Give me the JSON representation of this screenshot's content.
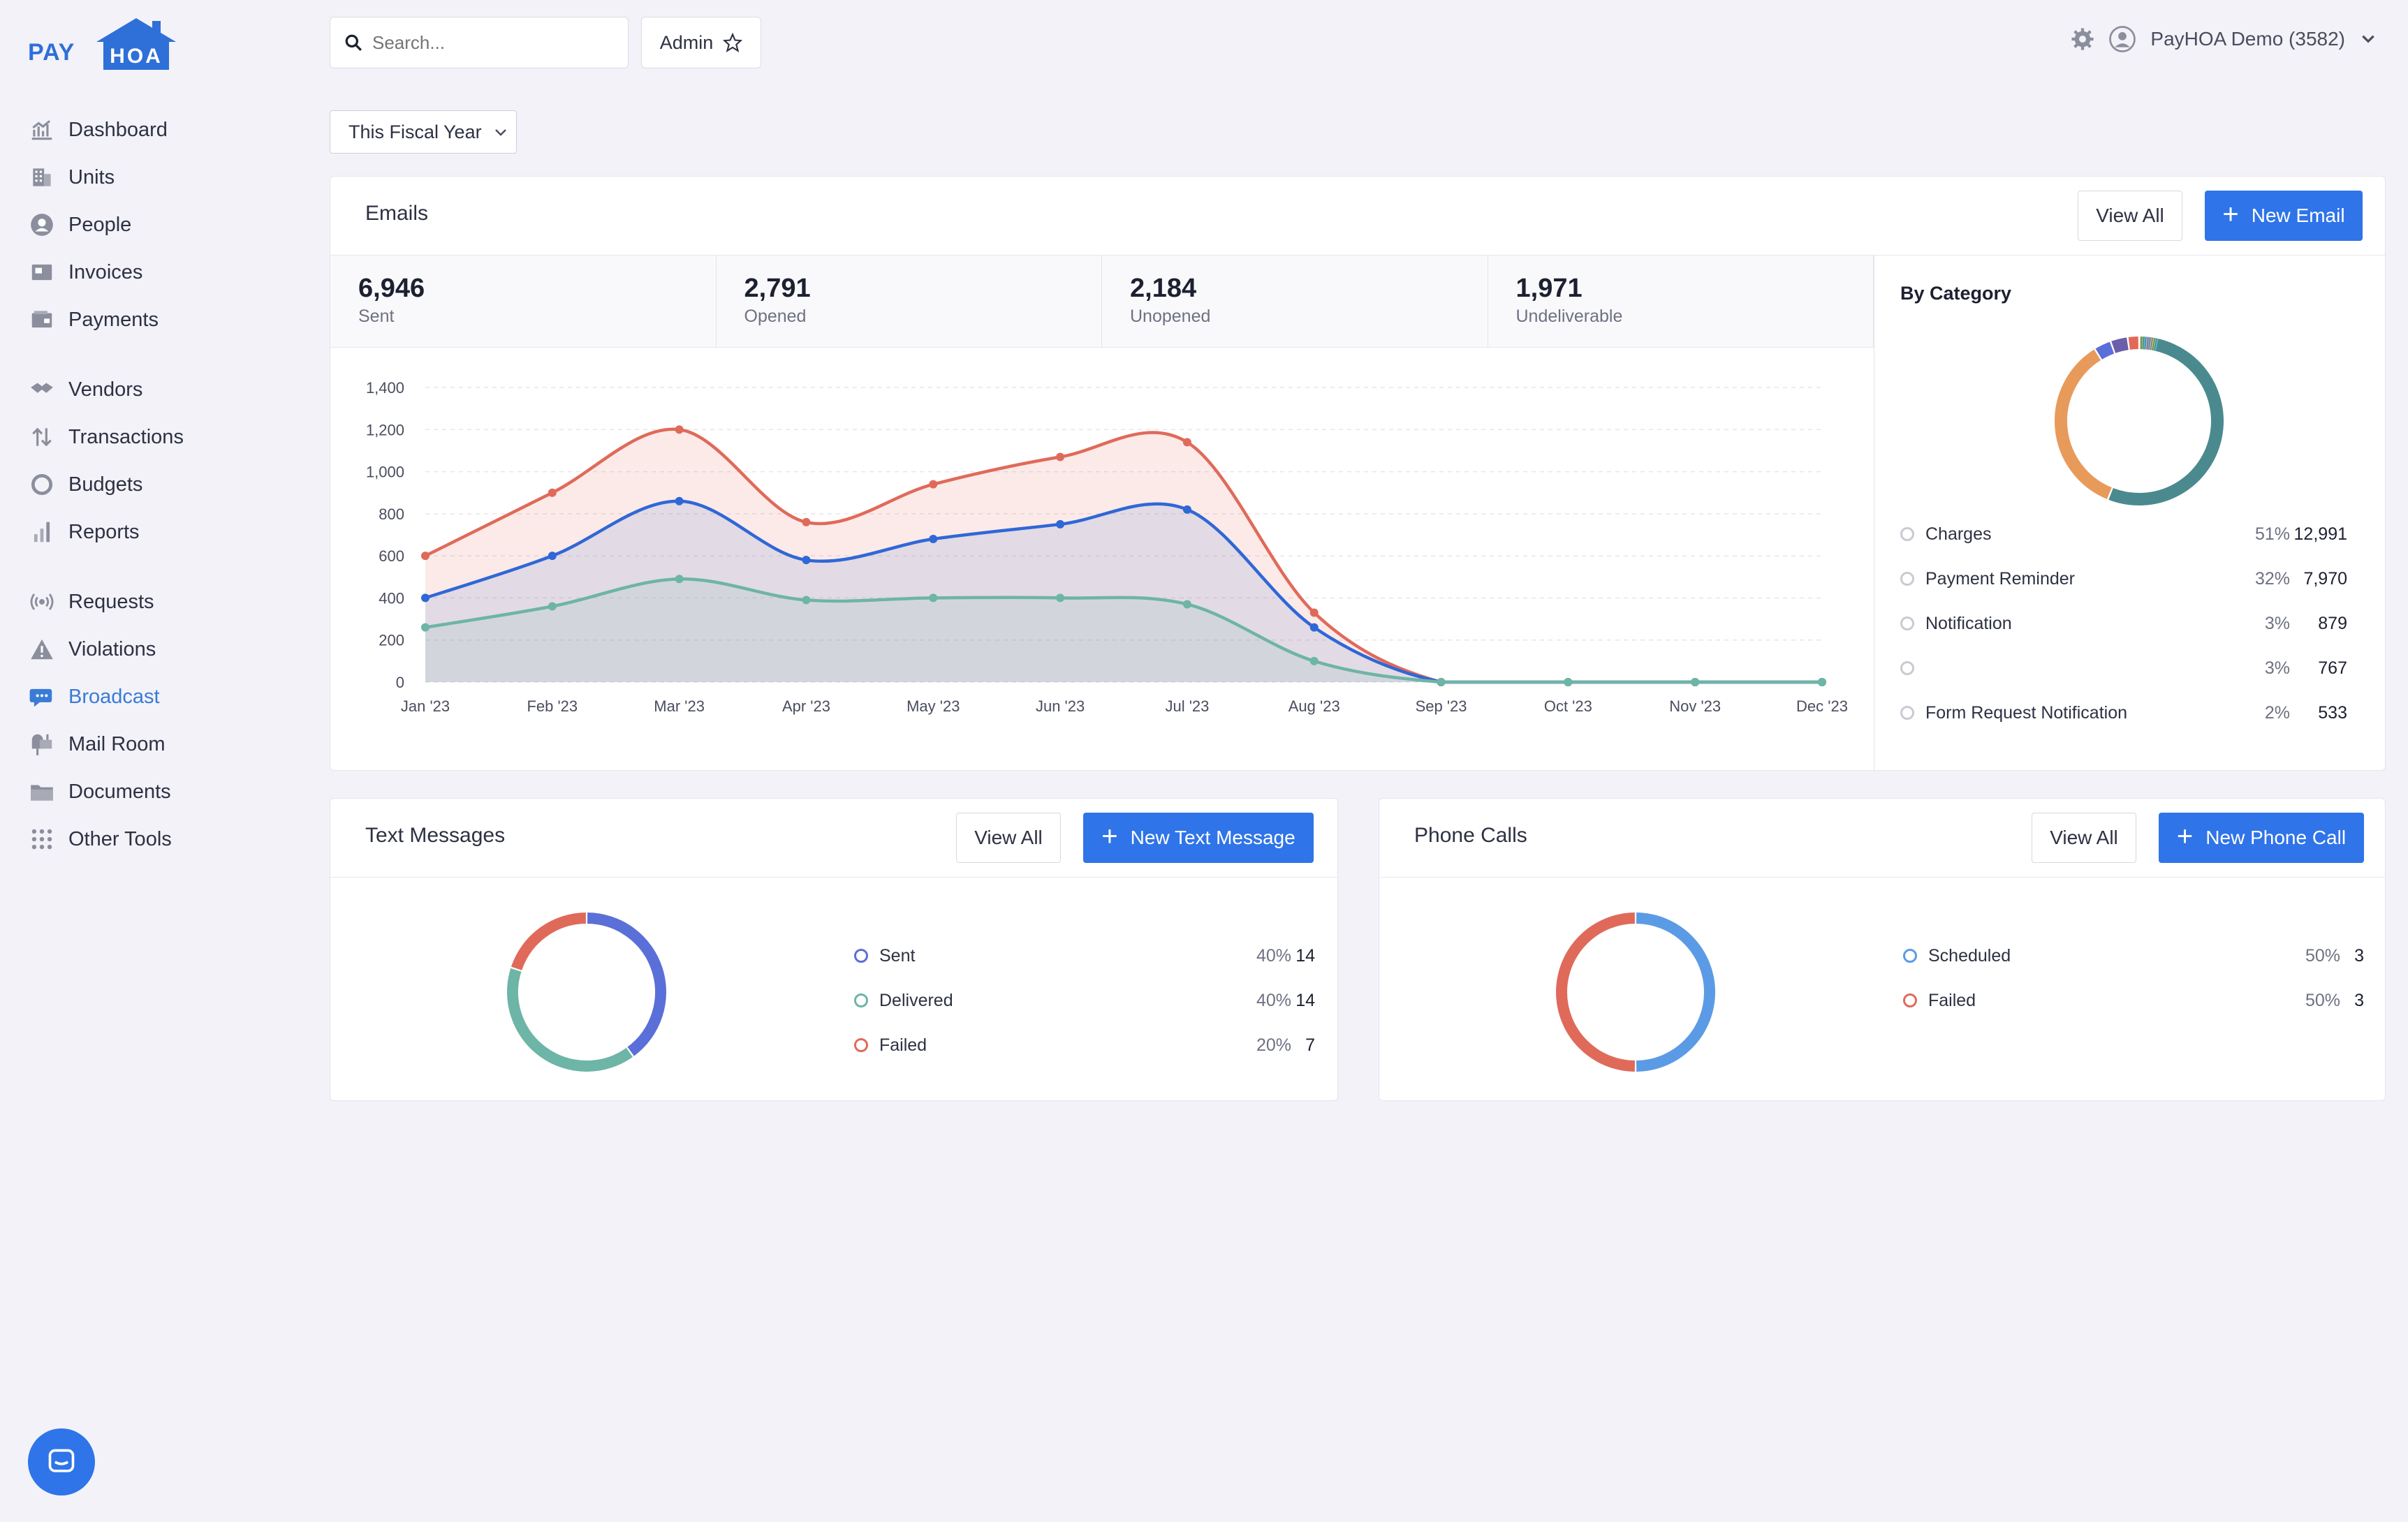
{
  "logo": {
    "pay": "PAY",
    "hoa": "HOA"
  },
  "sidebar": {
    "group1": [
      {
        "label": "Dashboard",
        "icon": "dashboard-icon"
      },
      {
        "label": "Units",
        "icon": "building-icon"
      },
      {
        "label": "People",
        "icon": "person-icon"
      },
      {
        "label": "Invoices",
        "icon": "invoice-icon"
      },
      {
        "label": "Payments",
        "icon": "wallet-icon"
      }
    ],
    "group2": [
      {
        "label": "Vendors",
        "icon": "handshake-icon"
      },
      {
        "label": "Transactions",
        "icon": "transfer-icon"
      },
      {
        "label": "Budgets",
        "icon": "circle-icon"
      },
      {
        "label": "Reports",
        "icon": "bar-chart-icon"
      }
    ],
    "group3": [
      {
        "label": "Requests",
        "icon": "signal-icon"
      },
      {
        "label": "Violations",
        "icon": "warning-icon"
      },
      {
        "label": "Broadcast",
        "icon": "chat-icon",
        "active": true
      },
      {
        "label": "Mail Room",
        "icon": "mailbox-icon"
      },
      {
        "label": "Documents",
        "icon": "folder-icon"
      },
      {
        "label": "Other Tools",
        "icon": "grid-icon"
      }
    ]
  },
  "topbar": {
    "search_placeholder": "Search...",
    "admin_label": "Admin",
    "account_label": "PayHOA Demo (3582)"
  },
  "filter": {
    "period": "This Fiscal Year"
  },
  "emails": {
    "title": "Emails",
    "view_all": "View All",
    "new_button": "New Email",
    "stats": [
      {
        "value": "6,946",
        "label": "Sent"
      },
      {
        "value": "2,791",
        "label": "Opened"
      },
      {
        "value": "2,184",
        "label": "Unopened"
      },
      {
        "value": "1,971",
        "label": "Undeliverable"
      }
    ],
    "by_category_title": "By Category",
    "categories": [
      {
        "name": "Charges",
        "pct": "51%",
        "value": "12,991"
      },
      {
        "name": "Payment Reminder",
        "pct": "32%",
        "value": "7,970"
      },
      {
        "name": "Notification",
        "pct": "3%",
        "value": "879"
      },
      {
        "name": "",
        "pct": "3%",
        "value": "767"
      },
      {
        "name": "Form Request Notification",
        "pct": "2%",
        "value": "533"
      }
    ]
  },
  "texts": {
    "title": "Text Messages",
    "view_all": "View All",
    "new_button": "New Text Message",
    "legend": [
      {
        "name": "Sent",
        "pct": "40%",
        "value": "14",
        "color": "#5b6fd8"
      },
      {
        "name": "Delivered",
        "pct": "40%",
        "value": "14",
        "color": "#6db5a6"
      },
      {
        "name": "Failed",
        "pct": "20%",
        "value": "7",
        "color": "#e06a5a"
      }
    ]
  },
  "calls": {
    "title": "Phone Calls",
    "view_all": "View All",
    "new_button": "New Phone Call",
    "legend": [
      {
        "name": "Scheduled",
        "pct": "50%",
        "value": "3",
        "color": "#5b9be6"
      },
      {
        "name": "Failed",
        "pct": "50%",
        "value": "3",
        "color": "#e06a5a"
      }
    ]
  },
  "chart_data": [
    {
      "type": "area",
      "x": [
        "Jan '23",
        "Feb '23",
        "Mar '23",
        "Apr '23",
        "May '23",
        "Jun '23",
        "Jul '23",
        "Aug '23",
        "Sep '23",
        "Oct '23",
        "Nov '23",
        "Dec '23"
      ],
      "ylim": [
        0,
        1400
      ],
      "yticks": [
        "0",
        "200",
        "400",
        "600",
        "800",
        "1,000",
        "1,200",
        "1,400"
      ],
      "grid": true,
      "series": [
        {
          "color": "#e06a5a",
          "values": [
            600,
            900,
            1200,
            760,
            940,
            1070,
            1140,
            330,
            0,
            0,
            0,
            0
          ]
        },
        {
          "color": "#3067d6",
          "values": [
            400,
            600,
            860,
            580,
            680,
            750,
            820,
            260,
            0,
            0,
            0,
            0
          ]
        },
        {
          "color": "#6db5a6",
          "values": [
            260,
            360,
            490,
            390,
            400,
            400,
            370,
            100,
            0,
            0,
            0,
            0
          ]
        }
      ]
    },
    {
      "type": "pie",
      "categories": [
        "Charges",
        "Payment Reminder",
        "Notification",
        "",
        "Form Request Notification"
      ],
      "values": [
        51,
        32,
        3,
        3,
        2
      ],
      "colors": [
        "#4a8a8f",
        "#e89a5b",
        "#5b6fd8",
        "#6a5fa8",
        "#e06a5a"
      ]
    },
    {
      "type": "pie",
      "categories": [
        "Sent",
        "Delivered",
        "Failed"
      ],
      "values": [
        14,
        14,
        7
      ],
      "colors": [
        "#5b6fd8",
        "#6db5a6",
        "#e06a5a"
      ]
    },
    {
      "type": "pie",
      "categories": [
        "Scheduled",
        "Failed"
      ],
      "values": [
        3,
        3
      ],
      "colors": [
        "#5b9be6",
        "#e06a5a"
      ]
    }
  ]
}
